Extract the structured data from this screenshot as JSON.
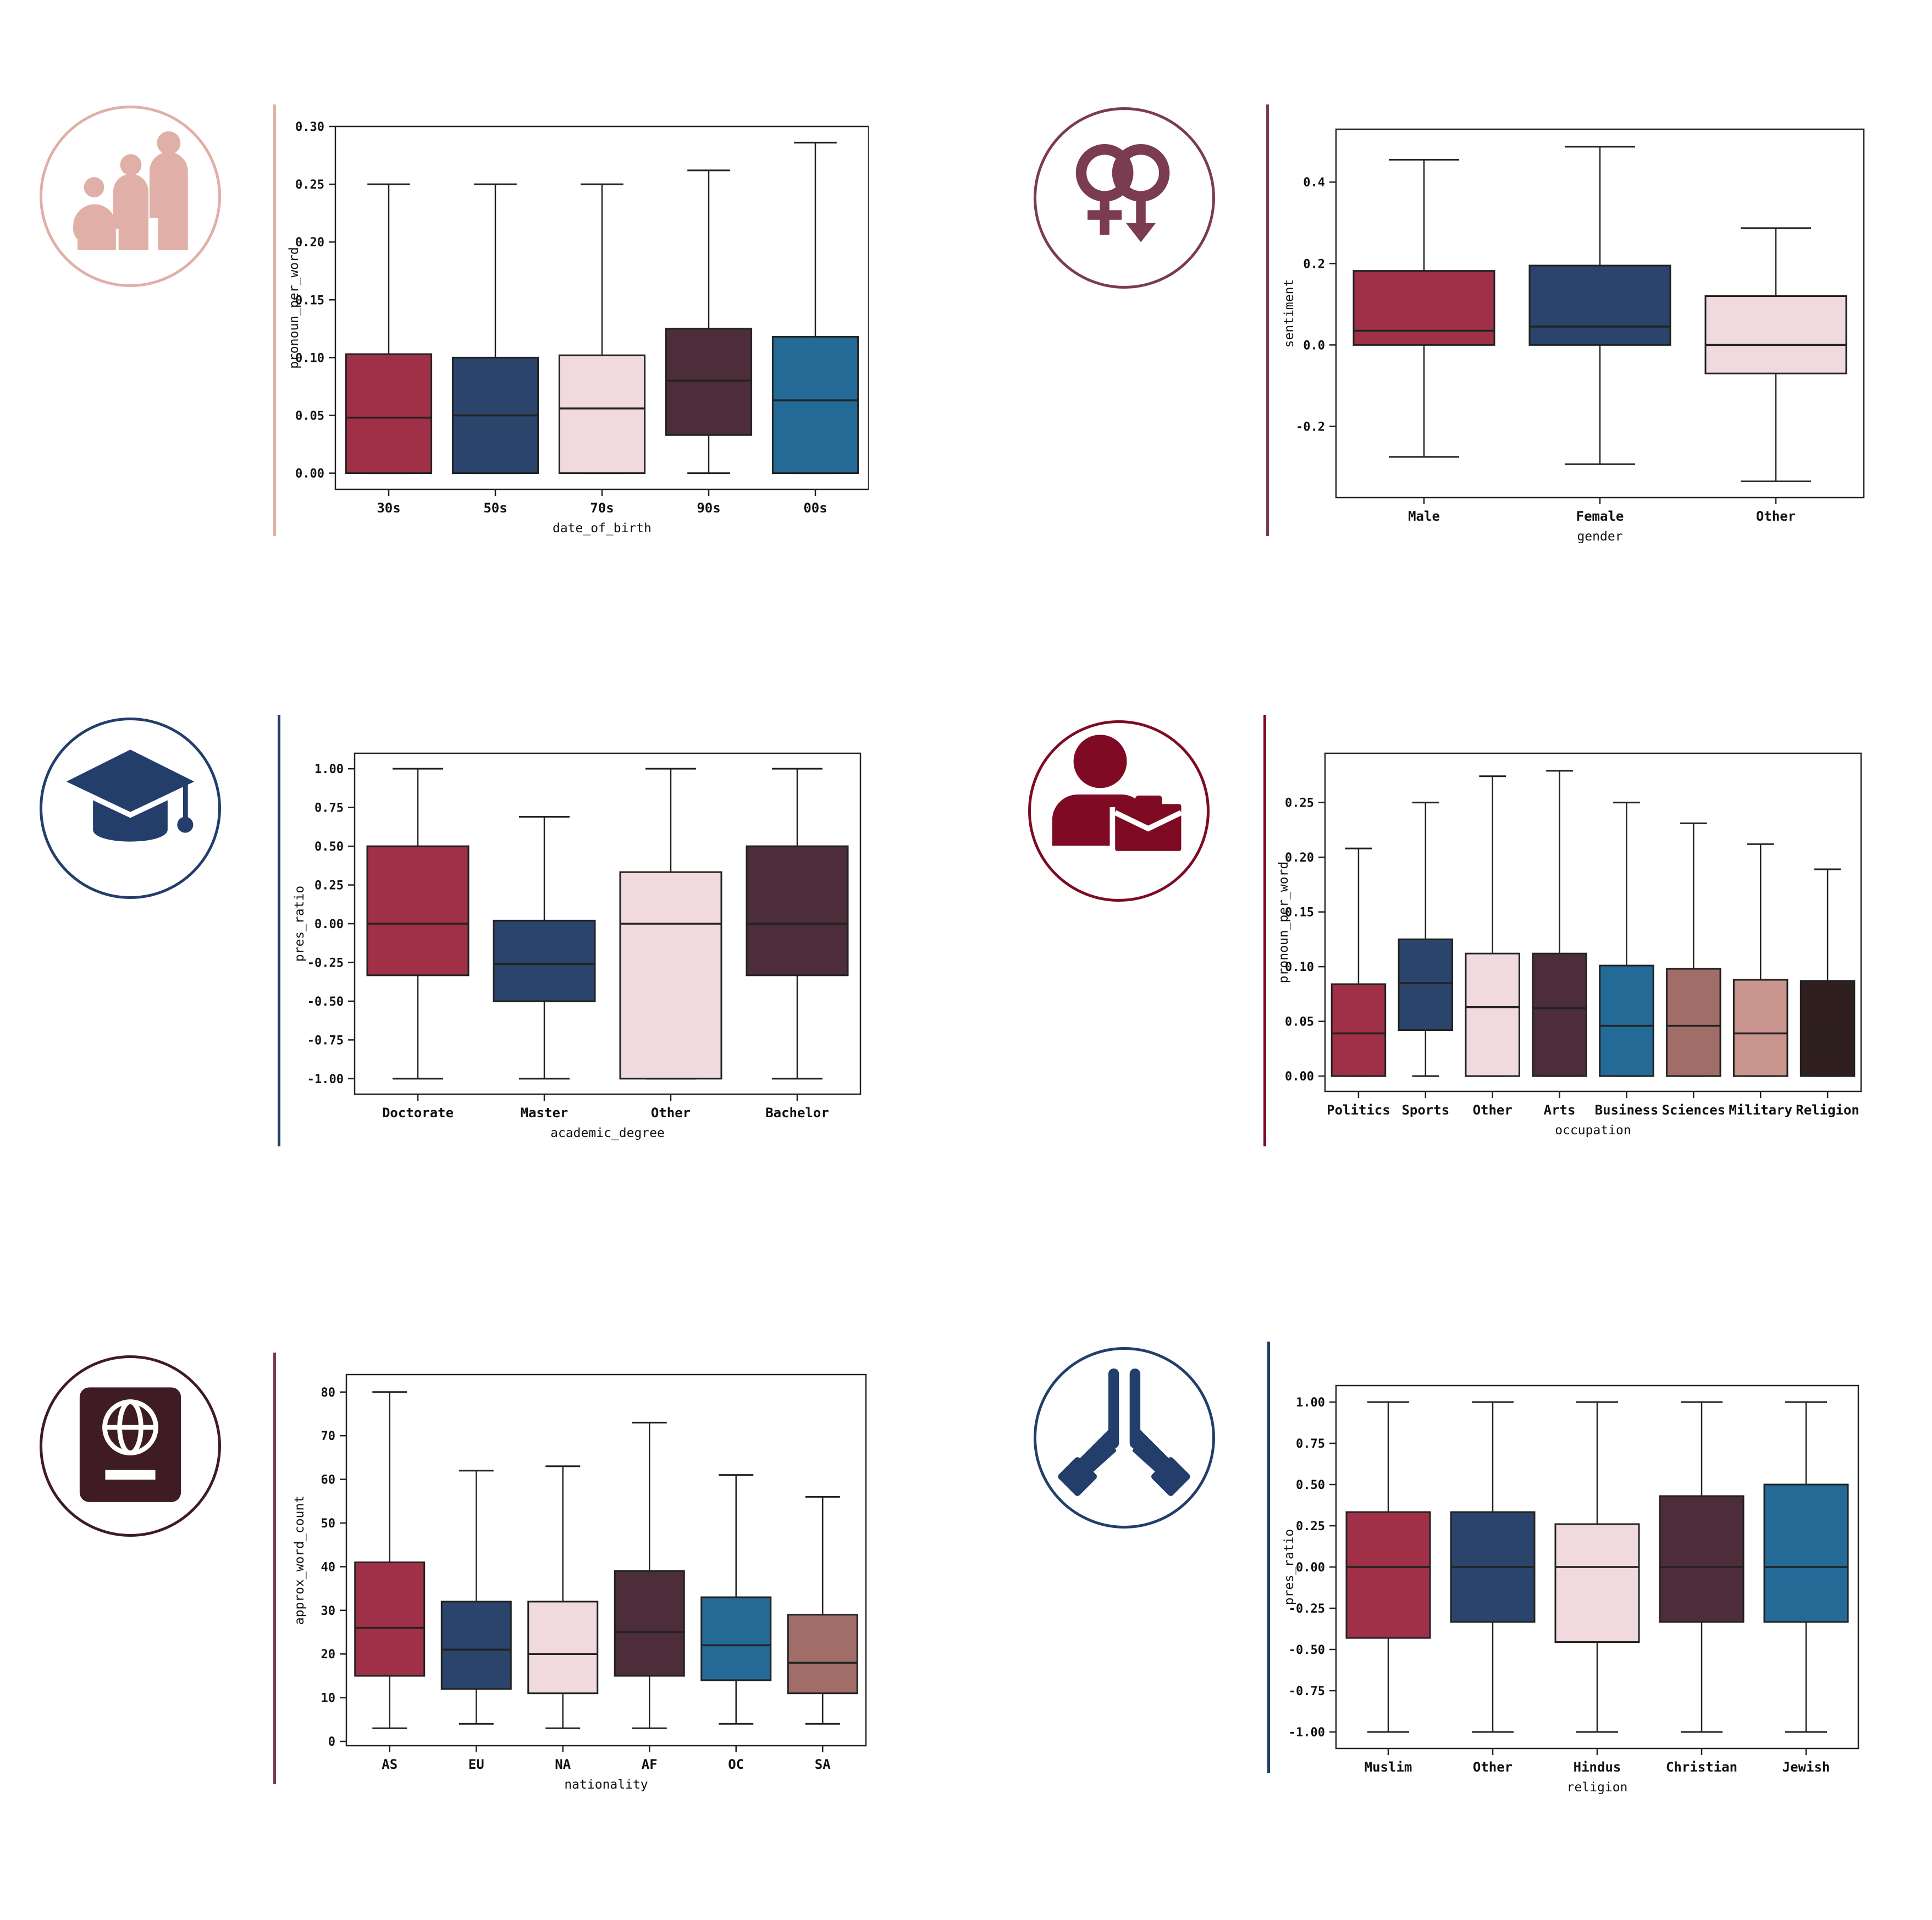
{
  "colors": {
    "crimson": "#9f3048",
    "navy": "#2b446b",
    "blush": "#f0dadd",
    "plum": "#4c2d39",
    "teal": "#246a97",
    "rosewood": "#a16d69",
    "dustypink": "#c9958e",
    "espresso": "#2f1f1f"
  },
  "panels": [
    {
      "icon": "family-icon",
      "accent": "#e0afa8",
      "chart_data": {
        "type": "box",
        "xlabel": "date_of_birth",
        "ylabel": "pronoun_per_word",
        "ylim": [
          -0.014,
          0.3
        ],
        "yticks": [
          0.0,
          0.05,
          0.1,
          0.15,
          0.2,
          0.25,
          0.3
        ],
        "ytick_labels": [
          "0.00",
          "0.05",
          "0.10",
          "0.15",
          "0.20",
          "0.25",
          "0.30"
        ],
        "categories": [
          "30s",
          "50s",
          "70s",
          "90s",
          "00s"
        ],
        "boxes": [
          {
            "whislo": 0.0,
            "q1": 0.0,
            "med": 0.048,
            "q3": 0.103,
            "whishi": 0.25,
            "color": "#9f3048"
          },
          {
            "whislo": 0.0,
            "q1": 0.0,
            "med": 0.05,
            "q3": 0.1,
            "whishi": 0.25,
            "color": "#2b446b"
          },
          {
            "whislo": 0.0,
            "q1": 0.0,
            "med": 0.056,
            "q3": 0.102,
            "whishi": 0.25,
            "color": "#f0dadd"
          },
          {
            "whislo": 0.0,
            "q1": 0.033,
            "med": 0.08,
            "q3": 0.125,
            "whishi": 0.262,
            "color": "#4c2d39"
          },
          {
            "whislo": 0.0,
            "q1": 0.0,
            "med": 0.063,
            "q3": 0.118,
            "whishi": 0.286,
            "color": "#246a97"
          }
        ]
      }
    },
    {
      "icon": "gender-symbols-icon",
      "accent": "#7b3b50",
      "chart_data": {
        "type": "box",
        "xlabel": "gender",
        "ylabel": "sentiment",
        "ylim": [
          -0.375,
          0.53
        ],
        "yticks": [
          -0.2,
          0.0,
          0.2,
          0.4
        ],
        "ytick_labels": [
          "-0.2",
          "0.0",
          "0.2",
          "0.4"
        ],
        "categories": [
          "Male",
          "Female",
          "Other"
        ],
        "boxes": [
          {
            "whislo": -0.275,
            "q1": 0.0,
            "med": 0.035,
            "q3": 0.182,
            "whishi": 0.455,
            "color": "#9f3048"
          },
          {
            "whislo": -0.293,
            "q1": 0.0,
            "med": 0.045,
            "q3": 0.195,
            "whishi": 0.487,
            "color": "#2b446b"
          },
          {
            "whislo": -0.335,
            "q1": -0.07,
            "med": 0.0,
            "q3": 0.12,
            "whishi": 0.287,
            "color": "#f0dadd"
          }
        ]
      }
    },
    {
      "icon": "graduation-cap-icon",
      "accent": "#233e6b",
      "chart_data": {
        "type": "box",
        "xlabel": "academic_degree",
        "ylabel": "pres_ratio",
        "ylim": [
          -1.1,
          1.1
        ],
        "yticks": [
          -1.0,
          -0.75,
          -0.5,
          -0.25,
          0.0,
          0.25,
          0.5,
          0.75,
          1.0
        ],
        "ytick_labels": [
          "-1.00",
          "-0.75",
          "-0.50",
          "-0.25",
          "0.00",
          "0.25",
          "0.50",
          "0.75",
          "1.00"
        ],
        "categories": [
          "Doctorate",
          "Master",
          "Other",
          "Bachelor"
        ],
        "boxes": [
          {
            "whislo": -1.0,
            "q1": -0.333,
            "med": 0.0,
            "q3": 0.5,
            "whishi": 1.0,
            "color": "#9f3048"
          },
          {
            "whislo": -1.0,
            "q1": -0.5,
            "med": -0.26,
            "q3": 0.02,
            "whishi": 0.69,
            "color": "#2b446b"
          },
          {
            "whislo": -1.0,
            "q1": -1.0,
            "med": 0.0,
            "q3": 0.333,
            "whishi": 1.0,
            "color": "#f0dadd"
          },
          {
            "whislo": -1.0,
            "q1": -0.333,
            "med": 0.0,
            "q3": 0.5,
            "whishi": 1.0,
            "color": "#4c2d39"
          }
        ]
      }
    },
    {
      "icon": "person-briefcase-icon",
      "accent": "#7e0a23",
      "chart_data": {
        "type": "box",
        "xlabel": "occupation",
        "ylabel": "pronoun_per_word",
        "ylim": [
          -0.014,
          0.295
        ],
        "yticks": [
          0.0,
          0.05,
          0.1,
          0.15,
          0.2,
          0.25
        ],
        "ytick_labels": [
          "0.00",
          "0.05",
          "0.10",
          "0.15",
          "0.20",
          "0.25"
        ],
        "categories": [
          "Politics",
          "Sports",
          "Other",
          "Arts",
          "Business",
          "Sciences",
          "Military",
          "Religion"
        ],
        "boxes": [
          {
            "whislo": 0.0,
            "q1": 0.0,
            "med": 0.039,
            "q3": 0.084,
            "whishi": 0.208,
            "color": "#9f3048"
          },
          {
            "whislo": 0.0,
            "q1": 0.042,
            "med": 0.085,
            "q3": 0.125,
            "whishi": 0.25,
            "color": "#2b446b"
          },
          {
            "whislo": 0.0,
            "q1": 0.0,
            "med": 0.063,
            "q3": 0.112,
            "whishi": 0.274,
            "color": "#f0dadd"
          },
          {
            "whislo": 0.0,
            "q1": 0.0,
            "med": 0.062,
            "q3": 0.112,
            "whishi": 0.279,
            "color": "#4c2d39"
          },
          {
            "whislo": 0.0,
            "q1": 0.0,
            "med": 0.046,
            "q3": 0.101,
            "whishi": 0.25,
            "color": "#246a97"
          },
          {
            "whislo": 0.0,
            "q1": 0.0,
            "med": 0.046,
            "q3": 0.098,
            "whishi": 0.231,
            "color": "#a16d69"
          },
          {
            "whislo": 0.0,
            "q1": 0.0,
            "med": 0.039,
            "q3": 0.088,
            "whishi": 0.212,
            "color": "#c9958e"
          },
          {
            "whislo": 0.0,
            "q1": 0.0,
            "med": 0.033,
            "q3": 0.087,
            "whishi": 0.189,
            "color": "#2f1f1f"
          }
        ]
      }
    },
    {
      "icon": "passport-globe-icon",
      "accent": "#3f1c24",
      "chart_data": {
        "type": "box",
        "xlabel": "nationality",
        "ylabel": "approx_word_count",
        "ylim": [
          -1,
          84
        ],
        "yticks": [
          0,
          10,
          20,
          30,
          40,
          50,
          60,
          70,
          80
        ],
        "ytick_labels": [
          "0",
          "10",
          "20",
          "30",
          "40",
          "50",
          "60",
          "70",
          "80"
        ],
        "categories": [
          "AS",
          "EU",
          "NA",
          "AF",
          "OC",
          "SA"
        ],
        "boxes": [
          {
            "whislo": 3,
            "q1": 15,
            "med": 26,
            "q3": 41,
            "whishi": 80,
            "color": "#9f3048"
          },
          {
            "whislo": 4,
            "q1": 12,
            "med": 21,
            "q3": 32,
            "whishi": 62,
            "color": "#2b446b"
          },
          {
            "whislo": 3,
            "q1": 11,
            "med": 20,
            "q3": 32,
            "whishi": 63,
            "color": "#f0dadd"
          },
          {
            "whislo": 3,
            "q1": 15,
            "med": 25,
            "q3": 39,
            "whishi": 73,
            "color": "#4c2d39"
          },
          {
            "whislo": 4,
            "q1": 14,
            "med": 22,
            "q3": 33,
            "whishi": 61,
            "color": "#246a97"
          },
          {
            "whislo": 4,
            "q1": 11,
            "med": 18,
            "q3": 29,
            "whishi": 56,
            "color": "#a16d69"
          }
        ]
      }
    },
    {
      "icon": "praying-hands-icon",
      "accent": "#233e6b",
      "chart_data": {
        "type": "box",
        "xlabel": "religion",
        "ylabel": "pres_ratio",
        "ylim": [
          -1.1,
          1.1
        ],
        "yticks": [
          -1.0,
          -0.75,
          -0.5,
          -0.25,
          0.0,
          0.25,
          0.5,
          0.75,
          1.0
        ],
        "ytick_labels": [
          "-1.00",
          "-0.75",
          "-0.50",
          "-0.25",
          "0.00",
          "0.25",
          "0.50",
          "0.75",
          "1.00"
        ],
        "categories": [
          "Muslim",
          "Other",
          "Hindus",
          "Christian",
          "Jewish"
        ],
        "boxes": [
          {
            "whislo": -1.0,
            "q1": -0.43,
            "med": 0.0,
            "q3": 0.333,
            "whishi": 1.0,
            "color": "#9f3048"
          },
          {
            "whislo": -1.0,
            "q1": -0.333,
            "med": 0.0,
            "q3": 0.333,
            "whishi": 1.0,
            "color": "#2b446b"
          },
          {
            "whislo": -1.0,
            "q1": -0.455,
            "med": 0.0,
            "q3": 0.26,
            "whishi": 1.0,
            "color": "#f0dadd"
          },
          {
            "whislo": -1.0,
            "q1": -0.333,
            "med": 0.0,
            "q3": 0.43,
            "whishi": 1.0,
            "color": "#4c2d39"
          },
          {
            "whislo": -1.0,
            "q1": -0.333,
            "med": 0.0,
            "q3": 0.5,
            "whishi": 1.0,
            "color": "#246a97"
          }
        ]
      }
    }
  ]
}
